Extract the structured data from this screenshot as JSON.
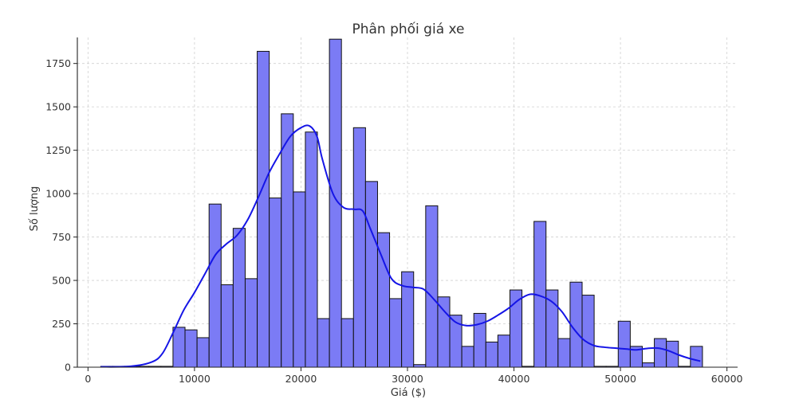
{
  "chart_data": {
    "type": "bar",
    "title": "Phân phối giá xe",
    "xlabel": "Giá ($)",
    "ylabel": "Số lượng",
    "xlim": [
      -1000,
      61000
    ],
    "ylim": [
      0,
      1900
    ],
    "xticks": [
      0,
      10000,
      20000,
      30000,
      40000,
      50000,
      60000
    ],
    "yticks": [
      0,
      250,
      500,
      750,
      1000,
      1250,
      1500,
      1750
    ],
    "grid": true,
    "bar_color": "#7b7bf5",
    "edge_color": "#111111",
    "kde_color": "#1515e6",
    "bins": {
      "start": 1200,
      "width": 1130,
      "counts": [
        5,
        5,
        5,
        5,
        5,
        5,
        230,
        215,
        170,
        940,
        475,
        800,
        510,
        1820,
        975,
        1460,
        1010,
        1355,
        280,
        1890,
        280,
        1380,
        1070,
        775,
        395,
        550,
        15,
        930,
        405,
        300,
        120,
        310,
        145,
        185,
        445,
        5,
        840,
        445,
        165,
        490,
        415,
        5,
        5,
        265,
        120,
        25,
        165,
        150,
        5,
        120
      ]
    },
    "kde": {
      "x": [
        1200,
        4000,
        6000,
        7000,
        8000,
        9000,
        10000,
        11000,
        12000,
        13000,
        14000,
        15000,
        16000,
        17000,
        18000,
        19000,
        20000,
        20800,
        21500,
        22000,
        23000,
        24000,
        25000,
        25800,
        26500,
        27500,
        28500,
        29500,
        30500,
        31500,
        32500,
        33500,
        34500,
        35500,
        36500,
        37500,
        38500,
        39500,
        40500,
        41500,
        42500,
        43500,
        44500,
        45500,
        46500,
        47500,
        48500,
        49500,
        50500,
        51500,
        52500,
        53500,
        54500,
        55500,
        56500,
        57500
      ],
      "y": [
        2,
        5,
        30,
        80,
        200,
        330,
        430,
        540,
        650,
        710,
        760,
        850,
        980,
        1120,
        1230,
        1330,
        1380,
        1390,
        1330,
        1200,
        1000,
        920,
        910,
        900,
        800,
        650,
        510,
        470,
        460,
        450,
        390,
        320,
        260,
        240,
        245,
        265,
        300,
        340,
        390,
        420,
        410,
        380,
        320,
        230,
        160,
        125,
        115,
        110,
        105,
        100,
        108,
        110,
        95,
        70,
        50,
        35
      ]
    }
  }
}
